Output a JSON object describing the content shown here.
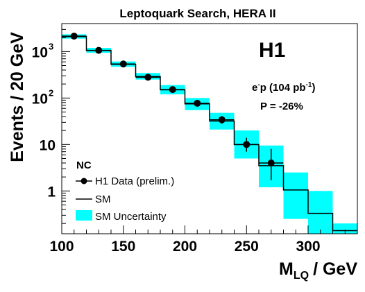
{
  "chart_data": {
    "type": "histogram",
    "title": "Leptoquark Search, HERA II",
    "xlabel_main": "M",
    "xlabel_sub": "LQ",
    "xlabel_unit": "/ GeV",
    "ylabel": "Events / 20 GeV",
    "xlim": [
      100,
      340
    ],
    "ylim": [
      0.12,
      4000
    ],
    "y_scale": "log",
    "x_ticks": [
      100,
      150,
      200,
      250,
      300
    ],
    "y_ticks": [
      {
        "value": 1,
        "label": "1",
        "exp": ""
      },
      {
        "value": 10,
        "label": "10",
        "exp": ""
      },
      {
        "value": 100,
        "label": "10",
        "exp": "2"
      },
      {
        "value": 1000,
        "label": "10",
        "exp": "3"
      }
    ],
    "bin_edges": [
      100,
      120,
      140,
      160,
      180,
      200,
      220,
      240,
      260,
      280,
      300,
      320,
      340
    ],
    "sm": [
      2100,
      1050,
      530,
      290,
      150,
      75,
      32,
      10,
      3.5,
      1.05,
      0.33,
      0.14
    ],
    "sm_uncertainty": [
      [
        1900,
        2350
      ],
      [
        940,
        1200
      ],
      [
        470,
        610
      ],
      [
        250,
        345
      ],
      [
        120,
        190
      ],
      [
        55,
        100
      ],
      [
        21,
        48
      ],
      [
        5.0,
        20
      ],
      [
        1.2,
        9.5
      ],
      [
        0.25,
        2.5
      ],
      [
        0.12,
        1.0
      ],
      [
        0.12,
        0.2
      ]
    ],
    "data_points": [
      {
        "x": 110,
        "y": 2150,
        "err": [
          2060,
          2240
        ]
      },
      {
        "x": 130,
        "y": 1060,
        "err": [
          1000,
          1130
        ]
      },
      {
        "x": 150,
        "y": 540,
        "err": [
          505,
          580
        ]
      },
      {
        "x": 170,
        "y": 280,
        "err": [
          255,
          310
        ]
      },
      {
        "x": 190,
        "y": 152,
        "err": [
          135,
          170
        ]
      },
      {
        "x": 210,
        "y": 77,
        "err": [
          66,
          90
        ]
      },
      {
        "x": 230,
        "y": 34,
        "err": [
          28,
          41
        ]
      },
      {
        "x": 250,
        "y": 10,
        "err": [
          7.0,
          14
        ]
      },
      {
        "x": 270,
        "y": 4,
        "err": [
          1.7,
          8.0
        ]
      }
    ],
    "colors": {
      "uncertainty": "#00ffff",
      "sm": "#000000",
      "data": "#000000"
    },
    "experiment": "H1",
    "beam": "e",
    "beam_sup": "-",
    "beam_rest": "p (104 pb",
    "lumi_sup": "-1",
    "lumi_close": ")",
    "polarization": "P = -26%",
    "legend": {
      "title": "NC",
      "data": "H1 Data (prelim.)",
      "sm": "SM",
      "unc": "SM Uncertainty"
    }
  }
}
